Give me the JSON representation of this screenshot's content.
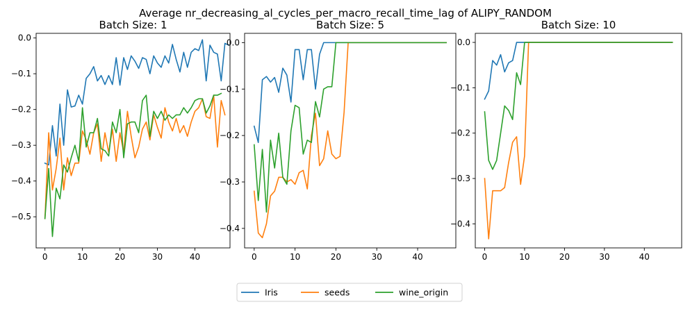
{
  "chart_data": {
    "type": "line",
    "title": "Average nr_decreasing_al_cycles_per_macro_recall_time_lag of ALIPY_RANDOM",
    "legend": {
      "placement": "bottom-center",
      "entries": [
        "Iris",
        "seeds",
        "wine_origin"
      ]
    },
    "colors": {
      "Iris": "#1f77b4",
      "seeds": "#ff7f0e",
      "wine_origin": "#2ca02c"
    },
    "grid": false,
    "panels": [
      {
        "title": "Batch Size: 1",
        "xlim": [
          -2.35,
          49.35
        ],
        "ylim": [
          -0.587,
          0.013
        ],
        "xticks": [
          0,
          10,
          20,
          30,
          40
        ],
        "yticks": [
          0.0,
          -0.1,
          -0.2,
          -0.3,
          -0.4,
          -0.5
        ],
        "yticklabels": [
          "0.0",
          "−0.1",
          "−0.2",
          "−0.3",
          "−0.4",
          "−0.5"
        ],
        "series": [
          {
            "name": "Iris",
            "values": [
              -0.35,
              -0.355,
              -0.245,
              -0.33,
              -0.185,
              -0.3,
              -0.145,
              -0.193,
              -0.19,
              -0.16,
              -0.185,
              -0.113,
              -0.1,
              -0.08,
              -0.12,
              -0.105,
              -0.13,
              -0.105,
              -0.13,
              -0.055,
              -0.132,
              -0.055,
              -0.088,
              -0.05,
              -0.065,
              -0.085,
              -0.055,
              -0.06,
              -0.1,
              -0.05,
              -0.07,
              -0.082,
              -0.05,
              -0.07,
              -0.018,
              -0.06,
              -0.095,
              -0.04,
              -0.082,
              -0.04,
              -0.03,
              -0.035,
              -0.005,
              -0.12,
              -0.02,
              -0.04,
              -0.045,
              -0.12,
              -0.015,
              -0.02
            ]
          },
          {
            "name": "seeds",
            "values": [
              -0.505,
              -0.265,
              -0.425,
              -0.365,
              -0.28,
              -0.425,
              -0.335,
              -0.385,
              -0.35,
              -0.35,
              -0.26,
              -0.285,
              -0.325,
              -0.265,
              -0.24,
              -0.345,
              -0.265,
              -0.32,
              -0.255,
              -0.345,
              -0.265,
              -0.32,
              -0.205,
              -0.275,
              -0.335,
              -0.305,
              -0.255,
              -0.235,
              -0.285,
              -0.215,
              -0.25,
              -0.28,
              -0.195,
              -0.235,
              -0.26,
              -0.225,
              -0.265,
              -0.245,
              -0.275,
              -0.235,
              -0.205,
              -0.195,
              -0.17,
              -0.22,
              -0.225,
              -0.16,
              -0.305,
              -0.175,
              -0.215
            ]
          },
          {
            "name": "wine_origin",
            "values": [
              -0.505,
              -0.365,
              -0.555,
              -0.42,
              -0.45,
              -0.355,
              -0.375,
              -0.335,
              -0.3,
              -0.345,
              -0.195,
              -0.305,
              -0.265,
              -0.265,
              -0.225,
              -0.31,
              -0.315,
              -0.33,
              -0.235,
              -0.265,
              -0.2,
              -0.335,
              -0.24,
              -0.235,
              -0.235,
              -0.265,
              -0.175,
              -0.16,
              -0.275,
              -0.205,
              -0.225,
              -0.205,
              -0.23,
              -0.215,
              -0.225,
              -0.215,
              -0.215,
              -0.195,
              -0.21,
              -0.195,
              -0.175,
              -0.17,
              -0.17,
              -0.21,
              -0.19,
              -0.16,
              -0.16,
              -0.155
            ]
          }
        ]
      },
      {
        "title": "Batch Size: 5",
        "xlim": [
          -2.35,
          49.35
        ],
        "ylim": [
          -0.442,
          0.02
        ],
        "xticks": [
          0,
          10,
          20,
          30,
          40
        ],
        "yticks": [
          0.0,
          -0.1,
          -0.2,
          -0.3,
          -0.4
        ],
        "yticklabels": [
          "0.0",
          "−0.1",
          "−0.2",
          "−0.3",
          "−0.4"
        ],
        "series": [
          {
            "name": "Iris",
            "values": [
              -0.18,
              -0.215,
              -0.08,
              -0.073,
              -0.085,
              -0.075,
              -0.107,
              -0.055,
              -0.07,
              -0.128,
              -0.015,
              -0.015,
              -0.08,
              -0.015,
              -0.015,
              -0.1,
              -0.025,
              0,
              0,
              0,
              0,
              0,
              0,
              0,
              0,
              0,
              0,
              0,
              0,
              0,
              0,
              0,
              0,
              0,
              0,
              0,
              0,
              0,
              0,
              0,
              0,
              0,
              0,
              0,
              0,
              0,
              0,
              0
            ]
          },
          {
            "name": "seeds",
            "values": [
              -0.32,
              -0.41,
              -0.42,
              -0.39,
              -0.33,
              -0.32,
              -0.29,
              -0.29,
              -0.3,
              -0.295,
              -0.305,
              -0.28,
              -0.275,
              -0.315,
              -0.2,
              -0.152,
              -0.265,
              -0.25,
              -0.19,
              -0.24,
              -0.25,
              -0.245,
              -0.15,
              0,
              0,
              0,
              0,
              0,
              0,
              0,
              0,
              0,
              0,
              0,
              0,
              0,
              0,
              0,
              0,
              0,
              0,
              0,
              0,
              0,
              0,
              0,
              0,
              0
            ]
          },
          {
            "name": "wine_origin",
            "values": [
              -0.22,
              -0.34,
              -0.23,
              -0.365,
              -0.21,
              -0.27,
              -0.195,
              -0.29,
              -0.305,
              -0.19,
              -0.135,
              -0.14,
              -0.24,
              -0.21,
              -0.215,
              -0.127,
              -0.16,
              -0.1,
              -0.095,
              -0.095,
              0,
              0,
              0,
              0,
              0,
              0,
              0,
              0,
              0,
              0,
              0,
              0,
              0,
              0,
              0,
              0,
              0,
              0,
              0,
              0,
              0,
              0,
              0,
              0,
              0,
              0,
              0,
              0
            ]
          }
        ]
      },
      {
        "title": "Batch Size: 10",
        "xlim": [
          -2.35,
          49.35
        ],
        "ylim": [
          -0.453,
          0.02
        ],
        "xticks": [
          0,
          10,
          20,
          30,
          40
        ],
        "yticks": [
          0.0,
          -0.1,
          -0.2,
          -0.3,
          -0.4
        ],
        "yticklabels": [
          "0.0",
          "−0.1",
          "−0.2",
          "−0.3",
          "−0.4"
        ],
        "series": [
          {
            "name": "Iris",
            "values": [
              -0.125,
              -0.107,
              -0.04,
              -0.05,
              -0.027,
              -0.065,
              -0.045,
              -0.04,
              0,
              0,
              0,
              0,
              0,
              0,
              0,
              0,
              0,
              0,
              0,
              0,
              0,
              0,
              0,
              0,
              0,
              0,
              0,
              0,
              0,
              0,
              0,
              0,
              0,
              0,
              0,
              0,
              0,
              0,
              0,
              0,
              0,
              0,
              0,
              0,
              0,
              0,
              0,
              0
            ]
          },
          {
            "name": "seeds",
            "values": [
              -0.3,
              -0.433,
              -0.327,
              -0.327,
              -0.327,
              -0.32,
              -0.265,
              -0.22,
              -0.208,
              -0.313,
              -0.25,
              0,
              0,
              0,
              0,
              0,
              0,
              0,
              0,
              0,
              0,
              0,
              0,
              0,
              0,
              0,
              0,
              0,
              0,
              0,
              0,
              0,
              0,
              0,
              0,
              0,
              0,
              0,
              0,
              0,
              0,
              0,
              0,
              0,
              0,
              0,
              0,
              0
            ]
          },
          {
            "name": "wine_origin",
            "values": [
              -0.153,
              -0.26,
              -0.28,
              -0.26,
              -0.2,
              -0.14,
              -0.15,
              -0.17,
              -0.067,
              -0.093,
              0,
              0,
              0,
              0,
              0,
              0,
              0,
              0,
              0,
              0,
              0,
              0,
              0,
              0,
              0,
              0,
              0,
              0,
              0,
              0,
              0,
              0,
              0,
              0,
              0,
              0,
              0,
              0,
              0,
              0,
              0,
              0,
              0,
              0,
              0,
              0,
              0,
              0
            ]
          }
        ]
      }
    ]
  }
}
